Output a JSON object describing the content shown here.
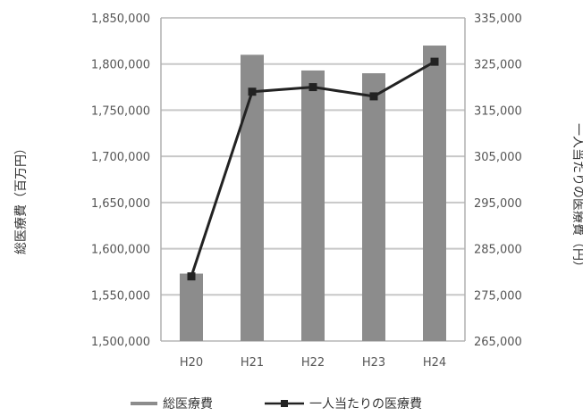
{
  "chart_data": {
    "type": "bar",
    "categories": [
      "H20",
      "H21",
      "H22",
      "H23",
      "H24"
    ],
    "series": [
      {
        "name": "総医療費",
        "kind": "bar",
        "axis": "left",
        "color": "#8c8c8c",
        "values": [
          1573000,
          1810000,
          1793000,
          1790000,
          1820000
        ]
      },
      {
        "name": "一人当たりの医療費",
        "kind": "line",
        "axis": "right",
        "color": "#222222",
        "values": [
          279000,
          319000,
          320000,
          318000,
          325500
        ]
      }
    ],
    "ylabel_left": "総医療費（百万円）",
    "ylabel_right": "一人当たりの医療費（円）",
    "left_axis": {
      "ylim": [
        1500000,
        1850000
      ],
      "ticks": [
        1500000,
        1550000,
        1600000,
        1650000,
        1700000,
        1750000,
        1800000,
        1850000
      ],
      "tick_labels": [
        "1,500,000",
        "1,550,000",
        "1,600,000",
        "1,650,000",
        "1,700,000",
        "1,750,000",
        "1,800,000",
        "1,850,000"
      ]
    },
    "right_axis": {
      "ylim": [
        265000,
        335000
      ],
      "ticks": [
        265000,
        275000,
        285000,
        295000,
        305000,
        315000,
        325000,
        335000
      ],
      "tick_labels": [
        "265,000",
        "275,000",
        "285,000",
        "295,000",
        "305,000",
        "315,000",
        "325,000",
        "335,000"
      ]
    },
    "grid": true,
    "legend_position": "bottom"
  }
}
